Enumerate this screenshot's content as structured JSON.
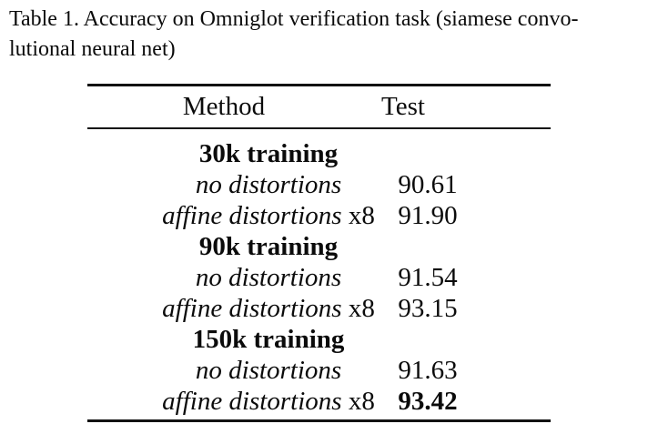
{
  "caption": {
    "text": "Table 1. Accuracy on Omniglot verification task (siamese convo-\nlutional neural net)"
  },
  "table": {
    "headers": {
      "method": "Method",
      "test": "Test"
    },
    "rows": [
      {
        "label": "30k training",
        "suffix": "",
        "value": "",
        "type": "group"
      },
      {
        "label": "no distortions",
        "suffix": "",
        "value": "90.61",
        "type": "data"
      },
      {
        "label": "affine distortions",
        "suffix": " x8",
        "value": "91.90",
        "type": "data"
      },
      {
        "label": "90k training",
        "suffix": "",
        "value": "",
        "type": "group"
      },
      {
        "label": "no distortions",
        "suffix": "",
        "value": "91.54",
        "type": "data"
      },
      {
        "label": "affine distortions",
        "suffix": " x8",
        "value": "93.15",
        "type": "data"
      },
      {
        "label": "150k training",
        "suffix": "",
        "value": "",
        "type": "group"
      },
      {
        "label": "no distortions",
        "suffix": "",
        "value": "91.63",
        "type": "data"
      },
      {
        "label": "affine distortions",
        "suffix": " x8",
        "value": "93.42",
        "type": "data-best"
      }
    ]
  },
  "colors": {
    "text": "#0b0b0b",
    "rule": "#121212",
    "background": "#ffffff"
  }
}
